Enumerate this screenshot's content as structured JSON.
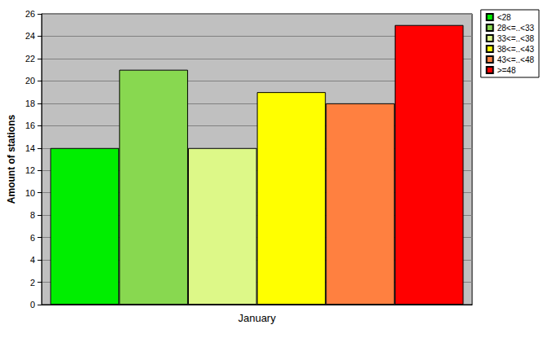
{
  "chart_data": {
    "type": "bar",
    "categories": [
      "January"
    ],
    "series": [
      {
        "name": "<28",
        "color": "#00ee00",
        "values": [
          14
        ]
      },
      {
        "name": "28<=..<33",
        "color": "#88d850",
        "values": [
          21
        ]
      },
      {
        "name": "33<=..<38",
        "color": "#ddf888",
        "values": [
          14
        ]
      },
      {
        "name": "38<=..<43",
        "color": "#ffff00",
        "values": [
          19
        ]
      },
      {
        "name": "43<=..<48",
        "color": "#ff8040",
        "values": [
          18
        ]
      },
      {
        "name": ">=48",
        "color": "#ff0000",
        "values": [
          25
        ]
      }
    ],
    "y_label": "Amount of stations",
    "ylim": [
      0,
      26
    ],
    "yticks": [
      0,
      2,
      4,
      6,
      8,
      10,
      12,
      14,
      16,
      18,
      20,
      22,
      24,
      26
    ],
    "grid": true,
    "legend": "top-right"
  }
}
